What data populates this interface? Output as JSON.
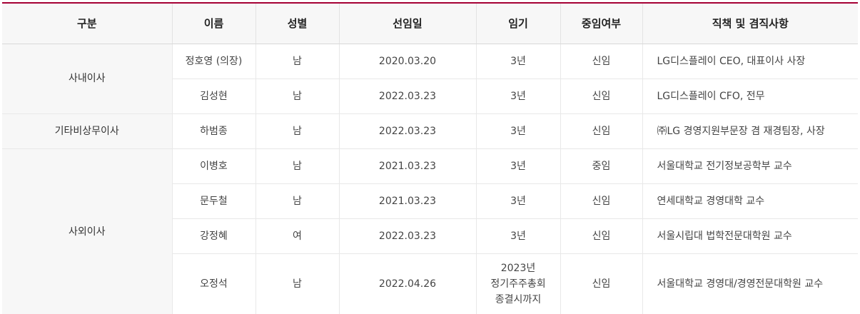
{
  "table": {
    "headers": [
      "구분",
      "이름",
      "성별",
      "선임일",
      "임기",
      "중임여부",
      "직책 및 겸직사항"
    ],
    "groups": {
      "inside": "사내이사",
      "other": "기타비상무이사",
      "outside": "사외이사"
    },
    "rows": [
      {
        "name": "정호영 (의장)",
        "gender": "남",
        "date": "2020.03.20",
        "term": "3년",
        "status": "신임",
        "duty": "LG디스플레이 CEO, 대표이사 사장"
      },
      {
        "name": "김성현",
        "gender": "남",
        "date": "2022.03.23",
        "term": "3년",
        "status": "신임",
        "duty": "LG디스플레이 CFO, 전무"
      },
      {
        "name": "하범종",
        "gender": "남",
        "date": "2022.03.23",
        "term": "3년",
        "status": "신임",
        "duty": "㈜LG 경영지원부문장 겸 재경팀장, 사장"
      },
      {
        "name": "이병호",
        "gender": "남",
        "date": "2021.03.23",
        "term": "3년",
        "status": "중임",
        "duty": "서울대학교 전기정보공학부 교수"
      },
      {
        "name": "문두철",
        "gender": "남",
        "date": "2021.03.23",
        "term": "3년",
        "status": "신임",
        "duty": "연세대학교 경영대학 교수"
      },
      {
        "name": "강정혜",
        "gender": "여",
        "date": "2022.03.23",
        "term": "3년",
        "status": "신임",
        "duty": "서울시립대 법학전문대학원 교수"
      },
      {
        "name": "오정석",
        "gender": "남",
        "date": "2022.04.26",
        "term_lines": [
          "2023년",
          "정기주주총회",
          "종결시까지"
        ],
        "status": "신임",
        "duty": "서울대학교 경영대/경영전문대학원 교수"
      }
    ]
  },
  "colors": {
    "accent": "#a50034",
    "header_bg": "#f7f7f7",
    "border": "#e8e8e8"
  }
}
